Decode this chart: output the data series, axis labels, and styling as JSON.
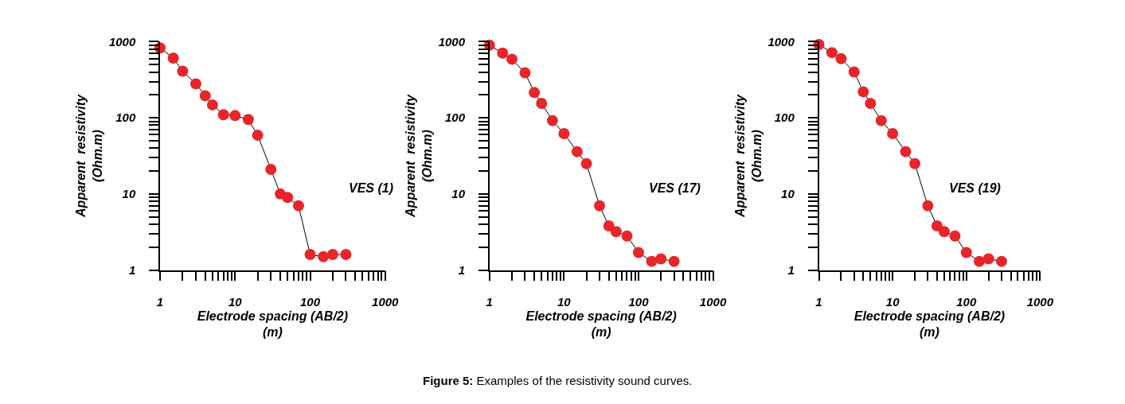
{
  "chart_data": [
    {
      "type": "line",
      "xlabel": "Electrode spacing (AB/2)\n(m)",
      "ylabel": "Apparent  resistivity\n(Ohm.m)",
      "annotations": [
        "VES (1)"
      ],
      "log": "xy",
      "marker": "circle",
      "line_style": "solid",
      "xlim": [
        1,
        1000
      ],
      "ylim": [
        1,
        1000
      ],
      "xticks": [
        1,
        {
          "value": 2,
          "label": null
        },
        {
          "value": 3,
          "label": null
        },
        {
          "value": 4,
          "label": null
        },
        {
          "value": 5,
          "label": null
        },
        {
          "value": 6,
          "label": null
        },
        {
          "value": 7,
          "label": null
        },
        {
          "value": 8,
          "label": null
        },
        {
          "value": 9,
          "label": null
        },
        10,
        {
          "value": 20,
          "label": null
        },
        {
          "value": 30,
          "label": null
        },
        {
          "value": 40,
          "label": null
        },
        {
          "value": 50,
          "label": null
        },
        {
          "value": 60,
          "label": null
        },
        {
          "value": 70,
          "label": null
        },
        {
          "value": 80,
          "label": null
        },
        {
          "value": 90,
          "label": null
        },
        100,
        {
          "value": 200,
          "label": null
        },
        {
          "value": 300,
          "label": null
        },
        {
          "value": 400,
          "label": null
        },
        {
          "value": 500,
          "label": null
        },
        {
          "value": 600,
          "label": null
        },
        {
          "value": 700,
          "label": null
        },
        {
          "value": 800,
          "label": null
        },
        {
          "value": 900,
          "label": null
        },
        1000
      ],
      "yticks": [
        1,
        {
          "value": 2,
          "label": null
        },
        {
          "value": 3,
          "label": null
        },
        {
          "value": 4,
          "label": null
        },
        {
          "value": 5,
          "label": null
        },
        {
          "value": 6,
          "label": null
        },
        {
          "value": 7,
          "label": null
        },
        {
          "value": 8,
          "label": null
        },
        {
          "value": 9,
          "label": null
        },
        10,
        {
          "value": 20,
          "label": null
        },
        {
          "value": 30,
          "label": null
        },
        {
          "value": 40,
          "label": null
        },
        {
          "value": 50,
          "label": null
        },
        {
          "value": 60,
          "label": null
        },
        {
          "value": 70,
          "label": null
        },
        {
          "value": 80,
          "label": null
        },
        {
          "value": 90,
          "label": null
        },
        100,
        {
          "value": 200,
          "label": null
        },
        {
          "value": 300,
          "label": null
        },
        {
          "value": 400,
          "label": null
        },
        {
          "value": 500,
          "label": null
        },
        {
          "value": 600,
          "label": null
        },
        {
          "value": 700,
          "label": null
        },
        {
          "value": 800,
          "label": null
        },
        {
          "value": 900,
          "label": null
        },
        1000
      ],
      "x": [
        1,
        1.5,
        2,
        3,
        4,
        5,
        7,
        10,
        15,
        20,
        30,
        40,
        50,
        70,
        100,
        150,
        200,
        300
      ],
      "series": [
        {
          "color": "#e8262a",
          "values": [
            830,
            610,
            410,
            280,
            195,
            148,
            110,
            107,
            95,
            59,
            21,
            10,
            9,
            7,
            1.6,
            1.5,
            1.6,
            1.6
          ]
        }
      ]
    },
    {
      "type": "line",
      "xlabel": "Electrode spacing (AB/2)\n(m)",
      "ylabel": "Apparent  resistivity\n(Ohm.m)",
      "annotations": [
        "VES (17)",
        "Figure 5: Examples of the resistivity sound curves."
      ],
      "log": "xy",
      "marker": "circle",
      "line_style": "solid",
      "xlim": [
        1,
        1000
      ],
      "ylim": [
        1,
        1000
      ],
      "xticks": [
        1,
        {
          "value": 2,
          "label": null
        },
        {
          "value": 3,
          "label": null
        },
        {
          "value": 4,
          "label": null
        },
        {
          "value": 5,
          "label": null
        },
        {
          "value": 6,
          "label": null
        },
        {
          "value": 7,
          "label": null
        },
        {
          "value": 8,
          "label": null
        },
        {
          "value": 9,
          "label": null
        },
        10,
        {
          "value": 20,
          "label": null
        },
        {
          "value": 30,
          "label": null
        },
        {
          "value": 40,
          "label": null
        },
        {
          "value": 50,
          "label": null
        },
        {
          "value": 60,
          "label": null
        },
        {
          "value": 70,
          "label": null
        },
        {
          "value": 80,
          "label": null
        },
        {
          "value": 90,
          "label": null
        },
        100,
        {
          "value": 200,
          "label": null
        },
        {
          "value": 300,
          "label": null
        },
        {
          "value": 400,
          "label": null
        },
        {
          "value": 500,
          "label": null
        },
        {
          "value": 600,
          "label": null
        },
        {
          "value": 700,
          "label": null
        },
        {
          "value": 800,
          "label": null
        },
        {
          "value": 900,
          "label": null
        },
        1000
      ],
      "yticks": [
        1,
        {
          "value": 2,
          "label": null
        },
        {
          "value": 3,
          "label": null
        },
        {
          "value": 4,
          "label": null
        },
        {
          "value": 5,
          "label": null
        },
        {
          "value": 6,
          "label": null
        },
        {
          "value": 7,
          "label": null
        },
        {
          "value": 8,
          "label": null
        },
        {
          "value": 9,
          "label": null
        },
        10,
        {
          "value": 20,
          "label": null
        },
        {
          "value": 30,
          "label": null
        },
        {
          "value": 40,
          "label": null
        },
        {
          "value": 50,
          "label": null
        },
        {
          "value": 60,
          "label": null
        },
        {
          "value": 70,
          "label": null
        },
        {
          "value": 80,
          "label": null
        },
        {
          "value": 90,
          "label": null
        },
        100,
        {
          "value": 200,
          "label": null
        },
        {
          "value": 300,
          "label": null
        },
        {
          "value": 400,
          "label": null
        },
        {
          "value": 500,
          "label": null
        },
        {
          "value": 600,
          "label": null
        },
        {
          "value": 700,
          "label": null
        },
        {
          "value": 800,
          "label": null
        },
        {
          "value": 900,
          "label": null
        },
        1000
      ],
      "x": [
        1,
        1.5,
        2,
        3,
        4,
        5,
        7,
        10,
        15,
        20,
        30,
        40,
        50,
        70,
        100,
        150,
        200,
        300
      ],
      "series": [
        {
          "color": "#e8262a",
          "values": [
            900,
            710,
            590,
            390,
            215,
            155,
            92,
            62,
            36,
            25,
            7,
            3.8,
            3.2,
            2.8,
            1.7,
            1.3,
            1.4,
            1.3
          ]
        }
      ]
    },
    {
      "type": "line",
      "xlabel": "Electrode spacing (AB/2)\n(m)",
      "ylabel": "Apparent  resistivity\n(Ohm.m)",
      "annotations": [
        "VES (19)"
      ],
      "log": "xy",
      "marker": "circle",
      "line_style": "solid",
      "xlim": [
        1,
        1000
      ],
      "ylim": [
        1,
        1000
      ],
      "xticks": [
        1,
        {
          "value": 2,
          "label": null
        },
        {
          "value": 3,
          "label": null
        },
        {
          "value": 4,
          "label": null
        },
        {
          "value": 5,
          "label": null
        },
        {
          "value": 6,
          "label": null
        },
        {
          "value": 7,
          "label": null
        },
        {
          "value": 8,
          "label": null
        },
        {
          "value": 9,
          "label": null
        },
        10,
        {
          "value": 20,
          "label": null
        },
        {
          "value": 30,
          "label": null
        },
        {
          "value": 40,
          "label": null
        },
        {
          "value": 50,
          "label": null
        },
        {
          "value": 60,
          "label": null
        },
        {
          "value": 70,
          "label": null
        },
        {
          "value": 80,
          "label": null
        },
        {
          "value": 90,
          "label": null
        },
        100,
        {
          "value": 200,
          "label": null
        },
        {
          "value": 300,
          "label": null
        },
        {
          "value": 400,
          "label": null
        },
        {
          "value": 500,
          "label": null
        },
        {
          "value": 600,
          "label": null
        },
        {
          "value": 700,
          "label": null
        },
        {
          "value": 800,
          "label": null
        },
        {
          "value": 900,
          "label": null
        },
        1000
      ],
      "yticks": [
        1,
        {
          "value": 2,
          "label": null
        },
        {
          "value": 3,
          "label": null
        },
        {
          "value": 4,
          "label": null
        },
        {
          "value": 5,
          "label": null
        },
        {
          "value": 6,
          "label": null
        },
        {
          "value": 7,
          "label": null
        },
        {
          "value": 8,
          "label": null
        },
        {
          "value": 9,
          "label": null
        },
        10,
        {
          "value": 20,
          "label": null
        },
        {
          "value": 30,
          "label": null
        },
        {
          "value": 40,
          "label": null
        },
        {
          "value": 50,
          "label": null
        },
        {
          "value": 60,
          "label": null
        },
        {
          "value": 70,
          "label": null
        },
        {
          "value": 80,
          "label": null
        },
        {
          "value": 90,
          "label": null
        },
        100,
        {
          "value": 200,
          "label": null
        },
        {
          "value": 300,
          "label": null
        },
        {
          "value": 400,
          "label": null
        },
        {
          "value": 500,
          "label": null
        },
        {
          "value": 600,
          "label": null
        },
        {
          "value": 700,
          "label": null
        },
        {
          "value": 800,
          "label": null
        },
        {
          "value": 900,
          "label": null
        },
        1000
      ],
      "x": [
        1,
        1.5,
        2,
        3,
        4,
        5,
        7,
        10,
        15,
        20,
        30,
        40,
        50,
        70,
        100,
        150,
        200,
        300
      ],
      "series": [
        {
          "color": "#e8262a",
          "values": [
            920,
            720,
            600,
            400,
            220,
            155,
            92,
            62,
            36,
            25,
            7,
            3.8,
            3.2,
            2.8,
            1.7,
            1.3,
            1.4,
            1.3
          ]
        }
      ]
    }
  ]
}
